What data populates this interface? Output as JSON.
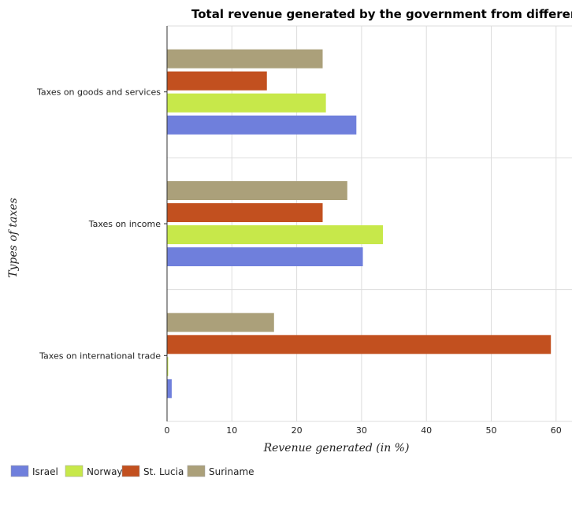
{
  "chart_data": {
    "type": "bar",
    "orientation": "horizontal",
    "title": "Total revenue generated by the government from different tax",
    "xlabel": "Revenue generated (in %)",
    "ylabel": "Types of taxes",
    "xlim": [
      0,
      62
    ],
    "xticks": [
      0,
      10,
      20,
      30,
      40,
      50,
      60
    ],
    "grid": true,
    "legend_position": "bottom-left",
    "categories": [
      "Taxes on goods and services",
      "Taxes on income",
      "Taxes on international trade"
    ],
    "series": [
      {
        "name": "Israel",
        "color": "#6f7fdc",
        "values": [
          29.2,
          30.2,
          0.72
        ]
      },
      {
        "name": "Norway",
        "color": "#c7e84a",
        "values": [
          24.5,
          33.3,
          0.18
        ]
      },
      {
        "name": "St. Lucia",
        "color": "#c2501f",
        "values": [
          15.4,
          24.0,
          59.2
        ]
      },
      {
        "name": "Suriname",
        "color": "#aba07a",
        "values": [
          24.0,
          27.8,
          16.5
        ]
      }
    ]
  }
}
